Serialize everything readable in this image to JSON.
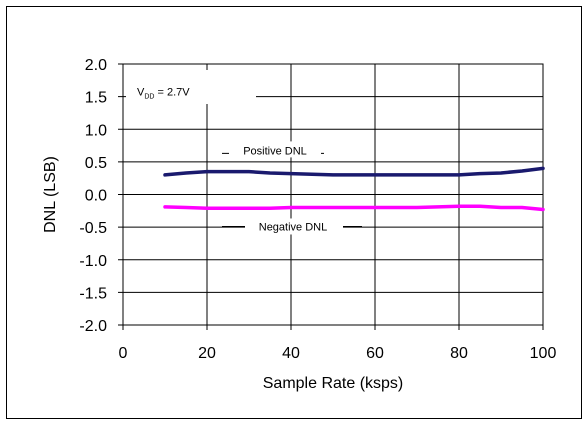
{
  "chart_data": {
    "type": "line",
    "xlabel": "Sample Rate (ksps)",
    "ylabel": "DNL (LSB)",
    "xlim": [
      0,
      100
    ],
    "ylim": [
      -2.0,
      2.0
    ],
    "x_ticks": [
      "0",
      "20",
      "40",
      "60",
      "80",
      "100"
    ],
    "y_ticks": [
      "2.0",
      "1.5",
      "1.0",
      "0.5",
      "0.0",
      "-0.5",
      "-1.0",
      "-1.5",
      "-2.0"
    ],
    "grid": true,
    "annotation": {
      "main": "V",
      "sub": "DD",
      "rest": " = 2.7V"
    },
    "series": [
      {
        "name": "Positive DNL",
        "color": "#1a1a6e",
        "x": [
          10,
          15,
          20,
          25,
          30,
          35,
          40,
          45,
          50,
          55,
          60,
          65,
          70,
          75,
          80,
          85,
          90,
          95,
          100
        ],
        "y": [
          0.3,
          0.33,
          0.35,
          0.35,
          0.35,
          0.33,
          0.32,
          0.31,
          0.3,
          0.3,
          0.3,
          0.3,
          0.3,
          0.3,
          0.3,
          0.32,
          0.33,
          0.36,
          0.4
        ]
      },
      {
        "name": "Negative DNL",
        "color": "#ff00ff",
        "x": [
          10,
          15,
          20,
          25,
          30,
          35,
          40,
          45,
          50,
          55,
          60,
          65,
          70,
          75,
          80,
          85,
          90,
          95,
          100
        ],
        "y": [
          -0.19,
          -0.2,
          -0.21,
          -0.21,
          -0.21,
          -0.21,
          -0.2,
          -0.2,
          -0.2,
          -0.2,
          -0.2,
          -0.2,
          -0.2,
          -0.19,
          -0.18,
          -0.18,
          -0.2,
          -0.2,
          -0.23
        ]
      }
    ]
  }
}
